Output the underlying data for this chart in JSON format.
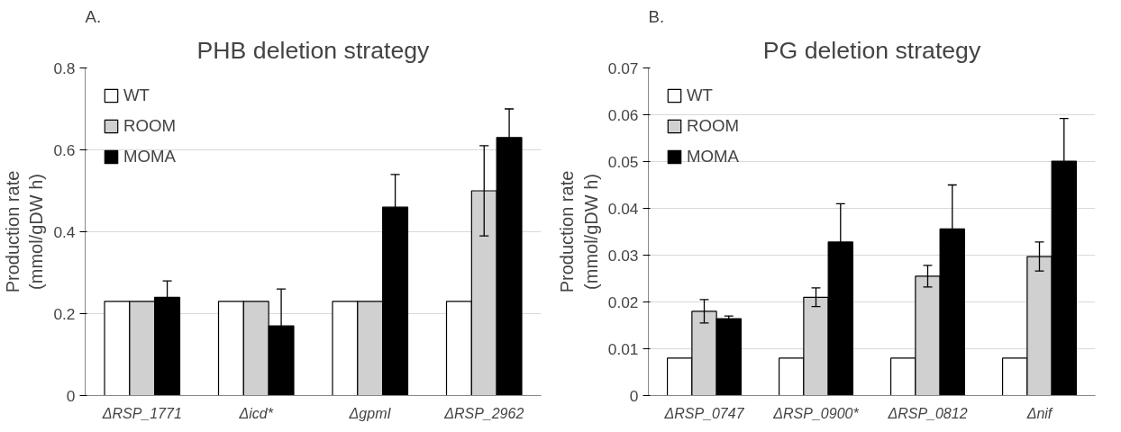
{
  "chart_data": [
    {
      "type": "bar",
      "title": "PHB deletion strategy",
      "ylabel": "Production rate\n(mmol/gDW h)",
      "annotations": [
        "A."
      ],
      "categories": [
        "ΔRSP_1771",
        "Δicd*",
        "ΔgpmI",
        "ΔRSP_2962"
      ],
      "series": [
        {
          "name": "WT",
          "color": "#ffffff",
          "values": [
            0.23,
            0.23,
            0.23,
            0.23
          ]
        },
        {
          "name": "ROOM",
          "color": "#d0d0d0",
          "values": [
            0.23,
            0.23,
            0.23,
            0.5
          ],
          "errors": [
            null,
            null,
            null,
            0.11
          ]
        },
        {
          "name": "MOMA",
          "color": "#000000",
          "values": [
            0.24,
            0.17,
            0.46,
            0.63
          ],
          "errors": [
            0.04,
            0.09,
            0.08,
            0.07
          ]
        }
      ],
      "ylim": [
        0,
        0.8
      ],
      "yticks": [
        0,
        0.2,
        0.4,
        0.6,
        0.8
      ],
      "grid": "y",
      "legend": "top left"
    },
    {
      "type": "bar",
      "title": "PG deletion strategy",
      "ylabel": "Production rate\n(mmol/gDW h)",
      "annotations": [
        "B."
      ],
      "categories": [
        "ΔRSP_0747",
        "ΔRSP_0900*",
        "ΔRSP_0812",
        "Δnif"
      ],
      "series": [
        {
          "name": "WT",
          "color": "#ffffff",
          "values": [
            0.008,
            0.008,
            0.008,
            0.008
          ]
        },
        {
          "name": "ROOM",
          "color": "#d0d0d0",
          "values": [
            0.018,
            0.021,
            0.0255,
            0.0297
          ],
          "errors": [
            0.0025,
            0.002,
            0.0023,
            0.0031
          ]
        },
        {
          "name": "MOMA",
          "color": "#000000",
          "values": [
            0.0164,
            0.0328,
            0.0356,
            0.0501
          ],
          "errors": [
            0.0006,
            0.0082,
            0.0094,
            0.0091
          ]
        }
      ],
      "ylim": [
        0,
        0.07
      ],
      "yticks": [
        0,
        0.01,
        0.02,
        0.03,
        0.04,
        0.05,
        0.06,
        0.07
      ],
      "grid": "y",
      "legend": "top left"
    }
  ]
}
